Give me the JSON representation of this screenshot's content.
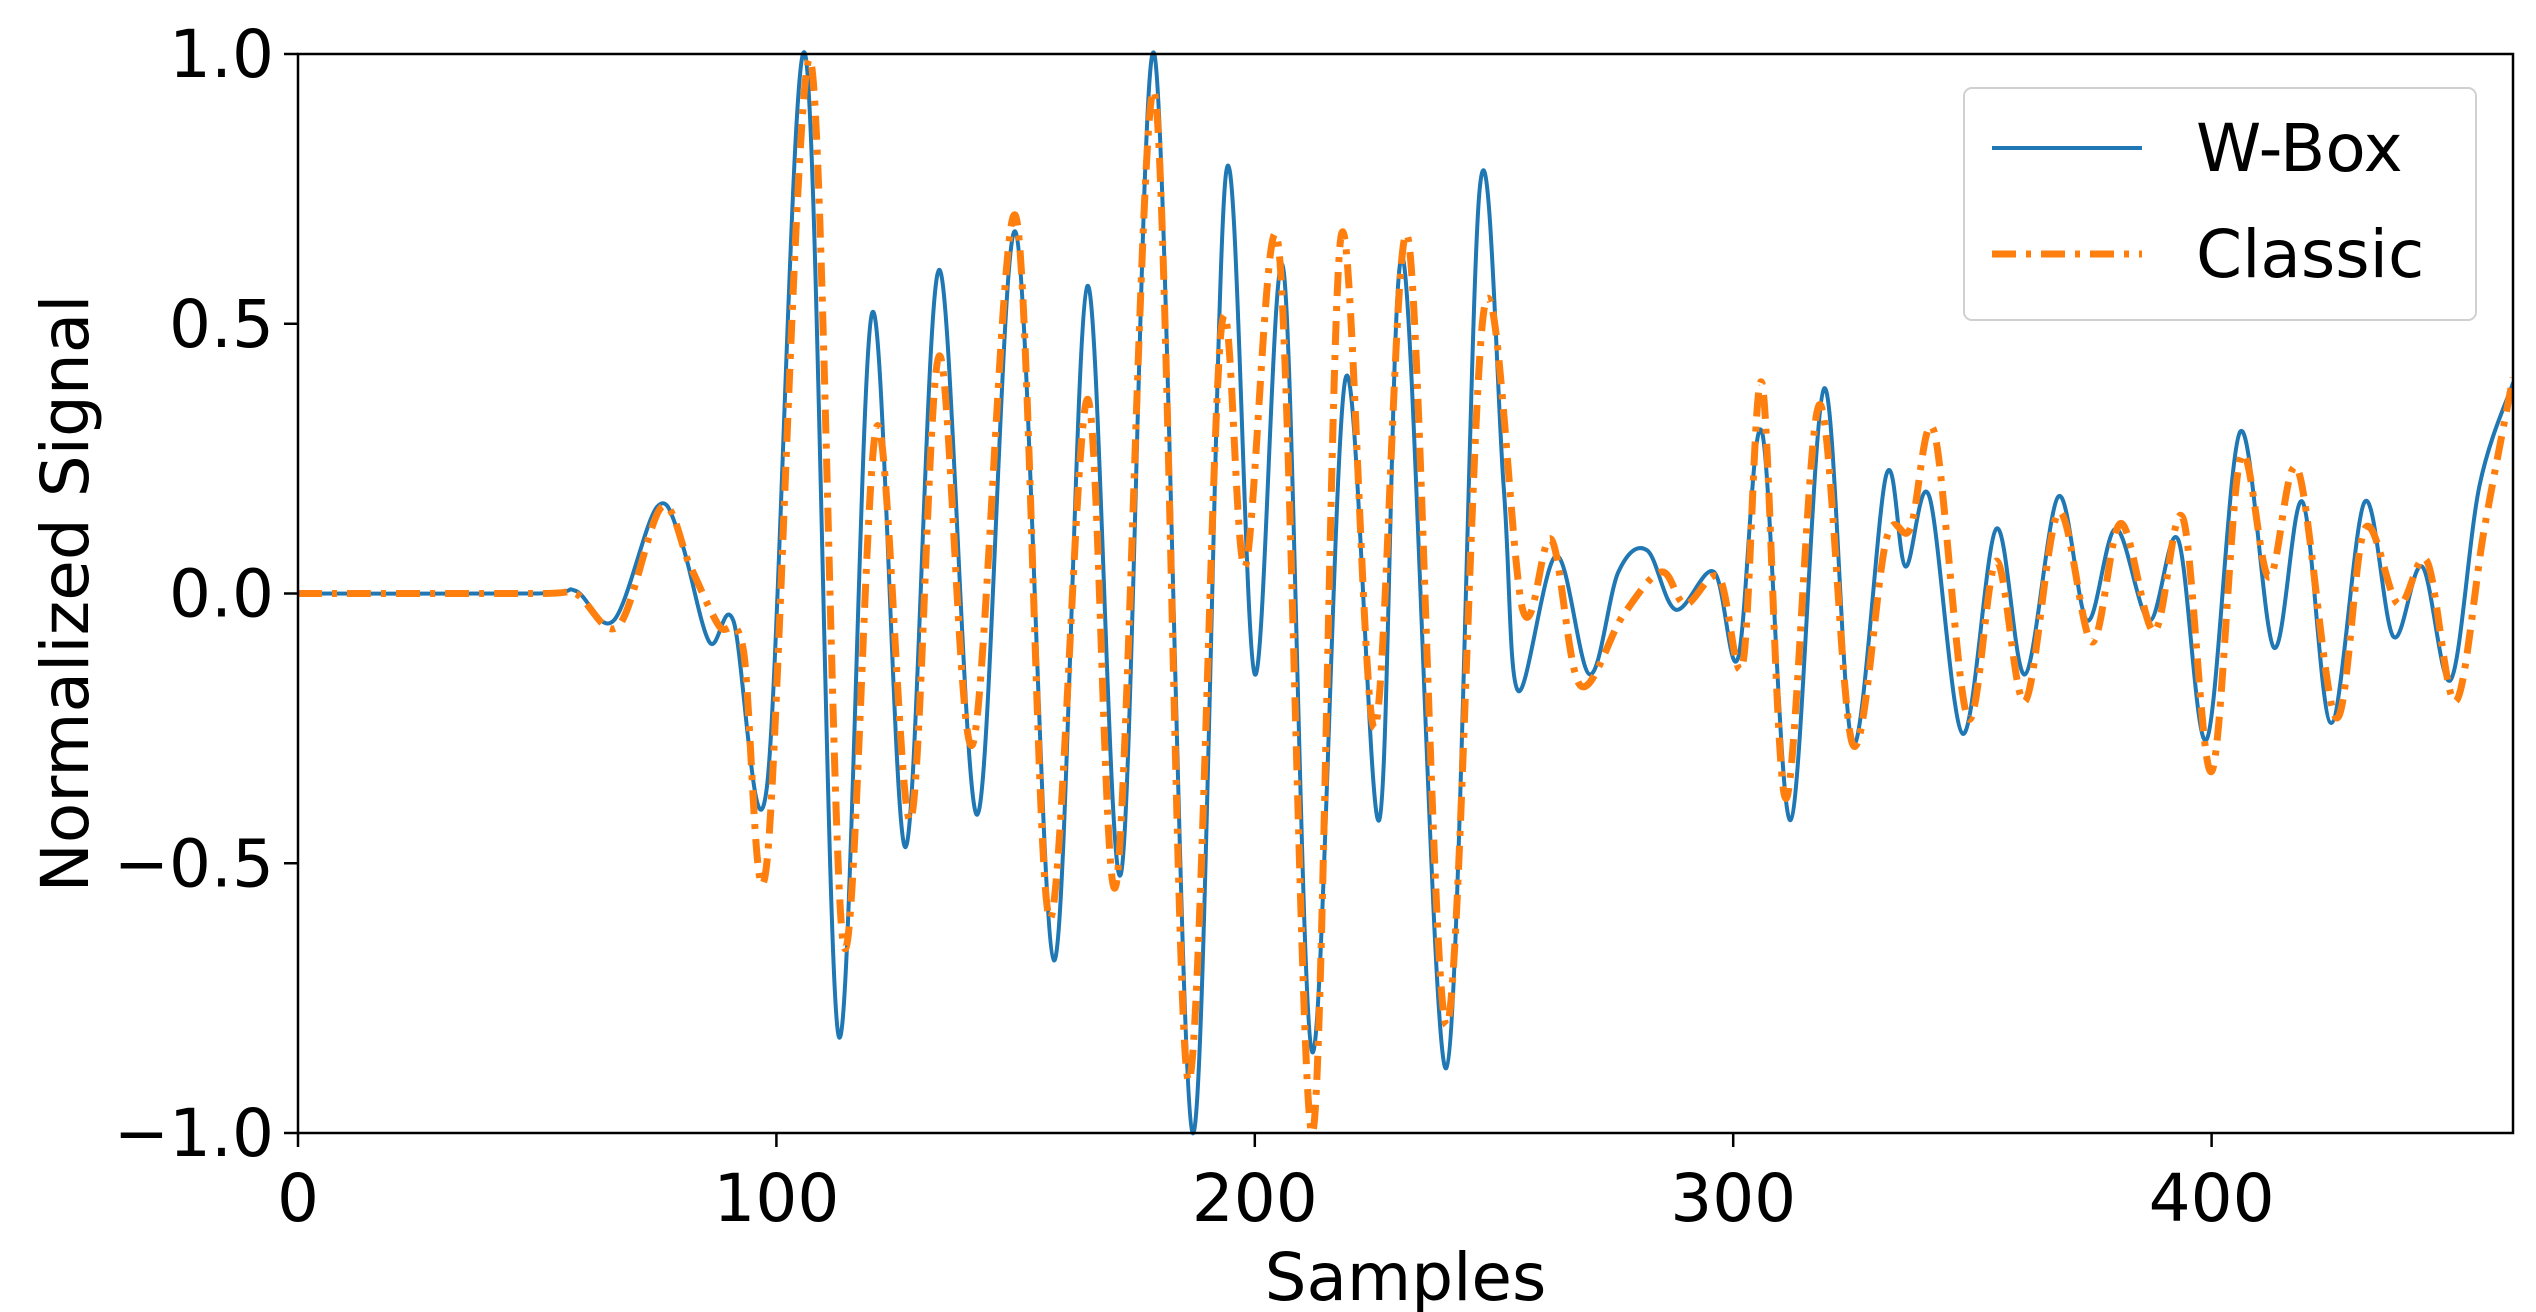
{
  "chart_data": {
    "type": "line",
    "xlabel": "Samples",
    "ylabel": "Normalized Signal",
    "xlim": [
      0,
      463
    ],
    "ylim": [
      -1.0,
      1.0
    ],
    "xticks": [
      0,
      100,
      200,
      300,
      400
    ],
    "xtick_labels": [
      "0",
      "100",
      "200",
      "300",
      "400"
    ],
    "yticks": [
      -1.0,
      -0.5,
      0.0,
      0.5,
      1.0
    ],
    "ytick_labels": [
      "−1.0",
      "−0.5",
      "0.0",
      "0.5",
      "1.0"
    ],
    "grid": false,
    "legend": "top-right",
    "series": [
      {
        "name": "W-Box",
        "color": "#1f77b4",
        "style": "solid",
        "points": [
          [
            0,
            0
          ],
          [
            50,
            0
          ],
          [
            58,
            0.005
          ],
          [
            66,
            -0.05
          ],
          [
            75,
            0.16
          ],
          [
            80,
            0.1
          ],
          [
            86,
            -0.09
          ],
          [
            91,
            -0.05
          ],
          [
            98,
            -0.36
          ],
          [
            106,
            1.0
          ],
          [
            113,
            -0.82
          ],
          [
            120,
            0.52
          ],
          [
            127,
            -0.47
          ],
          [
            134,
            0.6
          ],
          [
            142,
            -0.41
          ],
          [
            150,
            0.67
          ],
          [
            158,
            -0.68
          ],
          [
            165,
            0.57
          ],
          [
            172,
            -0.52
          ],
          [
            179,
            1.0
          ],
          [
            187,
            -1.0
          ],
          [
            194,
            0.78
          ],
          [
            200,
            -0.15
          ],
          [
            206,
            0.6
          ],
          [
            212,
            -0.85
          ],
          [
            219,
            0.4
          ],
          [
            226,
            -0.42
          ],
          [
            231,
            0.62
          ],
          [
            240,
            -0.88
          ],
          [
            247,
            0.75
          ],
          [
            252,
            0.2
          ],
          [
            255,
            -0.18
          ],
          [
            263,
            0.07
          ],
          [
            270,
            -0.15
          ],
          [
            276,
            0.04
          ],
          [
            282,
            0.08
          ],
          [
            288,
            -0.03
          ],
          [
            296,
            0.04
          ],
          [
            301,
            -0.12
          ],
          [
            306,
            0.3
          ],
          [
            312,
            -0.42
          ],
          [
            319,
            0.38
          ],
          [
            325,
            -0.28
          ],
          [
            332,
            0.22
          ],
          [
            336,
            0.05
          ],
          [
            341,
            0.18
          ],
          [
            348,
            -0.26
          ],
          [
            355,
            0.12
          ],
          [
            361,
            -0.15
          ],
          [
            368,
            0.18
          ],
          [
            374,
            -0.05
          ],
          [
            380,
            0.12
          ],
          [
            387,
            -0.05
          ],
          [
            393,
            0.1
          ],
          [
            399,
            -0.27
          ],
          [
            406,
            0.3
          ],
          [
            413,
            -0.1
          ],
          [
            419,
            0.17
          ],
          [
            425,
            -0.24
          ],
          [
            432,
            0.17
          ],
          [
            438,
            -0.08
          ],
          [
            444,
            0.05
          ],
          [
            450,
            -0.16
          ],
          [
            456,
            0.2
          ],
          [
            463,
            0.39
          ]
        ]
      },
      {
        "name": "Classic",
        "color": "#ff7f0e",
        "style": "dashdot",
        "points": [
          [
            0,
            0
          ],
          [
            50,
            0
          ],
          [
            58,
            0.0
          ],
          [
            67,
            -0.06
          ],
          [
            76,
            0.16
          ],
          [
            82,
            0.05
          ],
          [
            88,
            -0.06
          ],
          [
            93,
            -0.1
          ],
          [
            98,
            -0.5
          ],
          [
            107,
            0.99
          ],
          [
            114,
            -0.65
          ],
          [
            121,
            0.31
          ],
          [
            128,
            -0.42
          ],
          [
            134,
            0.44
          ],
          [
            141,
            -0.28
          ],
          [
            150,
            0.7
          ],
          [
            157,
            -0.6
          ],
          [
            165,
            0.36
          ],
          [
            171,
            -0.54
          ],
          [
            179,
            0.93
          ],
          [
            186,
            -0.9
          ],
          [
            193,
            0.49
          ],
          [
            198,
            0.05
          ],
          [
            205,
            0.64
          ],
          [
            212,
            -1.0
          ],
          [
            218,
            0.66
          ],
          [
            225,
            -0.25
          ],
          [
            232,
            0.66
          ],
          [
            240,
            -0.8
          ],
          [
            248,
            0.53
          ],
          [
            256,
            -0.03
          ],
          [
            262,
            0.1
          ],
          [
            268,
            -0.17
          ],
          [
            277,
            -0.04
          ],
          [
            285,
            0.04
          ],
          [
            290,
            -0.02
          ],
          [
            297,
            0.03
          ],
          [
            302,
            -0.13
          ],
          [
            306,
            0.39
          ],
          [
            311,
            -0.38
          ],
          [
            318,
            0.35
          ],
          [
            325,
            -0.28
          ],
          [
            332,
            0.1
          ],
          [
            337,
            0.12
          ],
          [
            342,
            0.3
          ],
          [
            349,
            -0.23
          ],
          [
            355,
            0.06
          ],
          [
            361,
            -0.2
          ],
          [
            368,
            0.15
          ],
          [
            375,
            -0.09
          ],
          [
            381,
            0.13
          ],
          [
            388,
            -0.07
          ],
          [
            394,
            0.14
          ],
          [
            400,
            -0.33
          ],
          [
            406,
            0.25
          ],
          [
            412,
            0.03
          ],
          [
            418,
            0.23
          ],
          [
            426,
            -0.23
          ],
          [
            432,
            0.12
          ],
          [
            439,
            -0.02
          ],
          [
            445,
            0.06
          ],
          [
            451,
            -0.2
          ],
          [
            457,
            0.12
          ],
          [
            463,
            0.4
          ]
        ]
      }
    ]
  }
}
